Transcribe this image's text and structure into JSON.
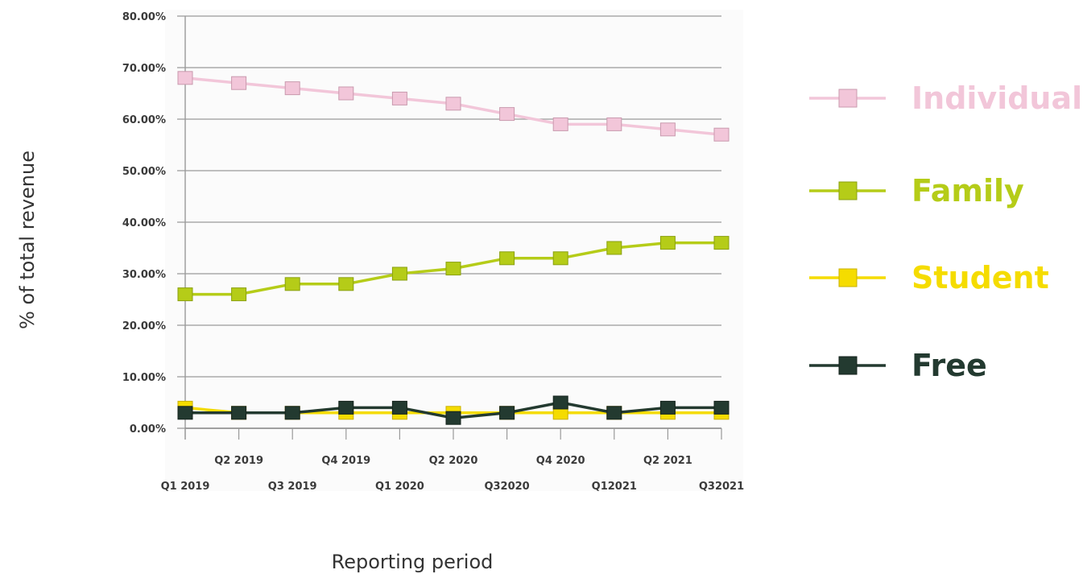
{
  "chart_data": {
    "type": "line",
    "title": "",
    "xlabel": "Reporting period",
    "ylabel": "% of total revenue",
    "categories": [
      "Q1 2019",
      "Q2 2019",
      "Q3 2019",
      "Q4 2019",
      "Q1 2020",
      "Q2 2020",
      "Q32020",
      "Q4 2020",
      "Q12021",
      "Q2 2021",
      "Q32021"
    ],
    "ylim": [
      0,
      80
    ],
    "yticks": [
      "0.00%",
      "10.00%",
      "20.00%",
      "30.00%",
      "40.00%",
      "50.00%",
      "60.00%",
      "70.00%",
      "80.00%"
    ],
    "grid": true,
    "legend_position": "right",
    "series": [
      {
        "name": "Individual",
        "color": "#f2c6d9",
        "values": [
          68,
          67,
          66,
          65,
          64,
          63,
          61,
          59,
          59,
          58,
          57
        ]
      },
      {
        "name": "Family",
        "color": "#b5cc18",
        "values": [
          26,
          26,
          28,
          28,
          30,
          31,
          33,
          33,
          35,
          36,
          36
        ]
      },
      {
        "name": "Student",
        "color": "#f5dc00",
        "values": [
          4,
          3,
          3,
          3,
          3,
          3,
          3,
          3,
          3,
          3,
          3
        ]
      },
      {
        "name": "Free",
        "color": "#233a30",
        "values": [
          3,
          3,
          3,
          4,
          4,
          2,
          3,
          5,
          3,
          4,
          4
        ]
      }
    ]
  }
}
